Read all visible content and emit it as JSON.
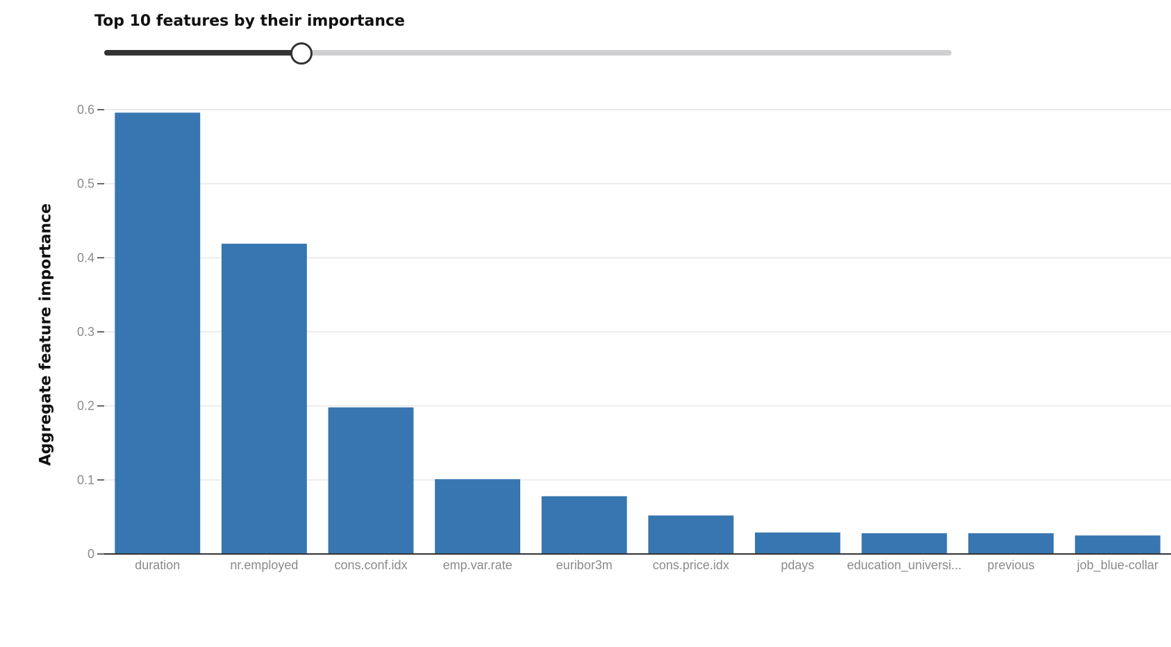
{
  "slider": {
    "title": "Top 10 features by their importance",
    "min": 1,
    "max": 40,
    "value": 10
  },
  "colors": {
    "bar": "#3776b0",
    "gridline": "#e6e6e6",
    "axis": "#333333",
    "tick_text": "#8a8a8a"
  },
  "chart_data": {
    "type": "bar",
    "title": "",
    "xlabel": "",
    "ylabel": "Aggregate feature importance",
    "ylim": [
      0,
      0.6
    ],
    "yticks": [
      0,
      0.1,
      0.2,
      0.3,
      0.4,
      0.5,
      0.6
    ],
    "ytick_labels": [
      "0",
      "0.1",
      "0.2",
      "0.3",
      "0.4",
      "0.5",
      "0.6"
    ],
    "grid": true,
    "categories": [
      "duration",
      "nr.employed",
      "cons.conf.idx",
      "emp.var.rate",
      "euribor3m",
      "cons.price.idx",
      "pdays",
      "education_universi...",
      "previous",
      "job_blue-collar"
    ],
    "values": [
      0.596,
      0.419,
      0.198,
      0.101,
      0.078,
      0.052,
      0.029,
      0.028,
      0.028,
      0.025
    ]
  }
}
